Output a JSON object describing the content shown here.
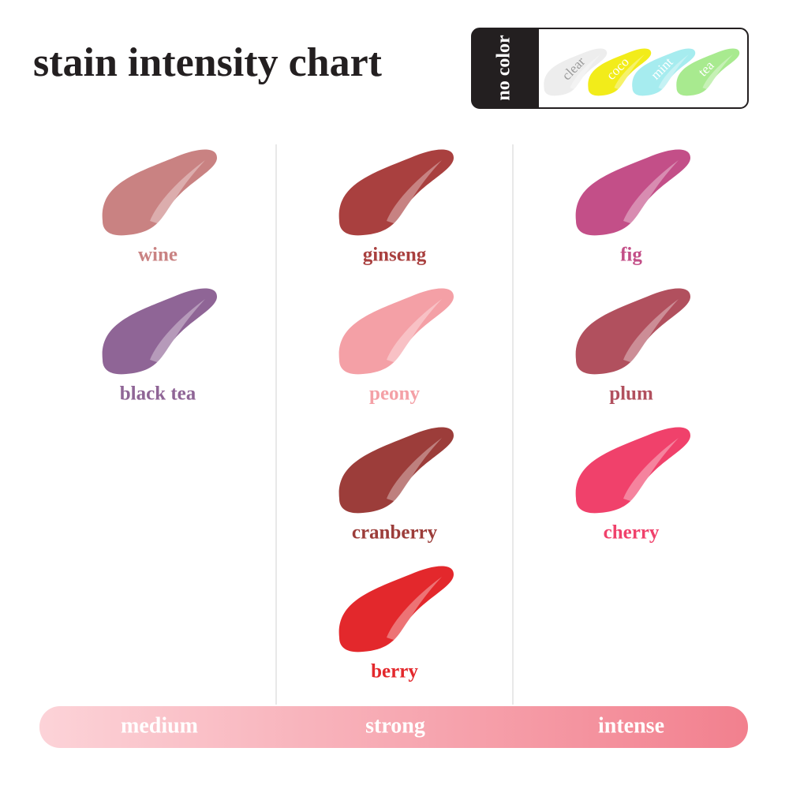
{
  "header": {
    "title": "stain intensity chart"
  },
  "no_color": {
    "label": "no color",
    "swatches": [
      {
        "name": "clear",
        "color": "#ededed",
        "text_color": "#9a9a9a"
      },
      {
        "name": "coco",
        "color": "#f2ec1a",
        "text_color": "#ffffff"
      },
      {
        "name": "mint",
        "color": "#a6ecef",
        "text_color": "#ffffff"
      },
      {
        "name": "tea",
        "color": "#a8ea8f",
        "text_color": "#ffffff"
      }
    ]
  },
  "columns": [
    {
      "items": [
        {
          "name": "wine",
          "color": "#c98282"
        },
        {
          "name": "black tea",
          "color": "#8f6596"
        }
      ]
    },
    {
      "items": [
        {
          "name": "ginseng",
          "color": "#a9403f"
        },
        {
          "name": "peony",
          "color": "#f4a0a6"
        },
        {
          "name": "cranberry",
          "color": "#9c3d3a"
        },
        {
          "name": "berry",
          "color": "#e3282c"
        }
      ]
    },
    {
      "items": [
        {
          "name": "fig",
          "color": "#c34f88"
        },
        {
          "name": "plum",
          "color": "#b1505e"
        },
        {
          "name": "cherry",
          "color": "#f0416b"
        }
      ]
    }
  ],
  "intensity": {
    "labels": [
      "medium",
      "strong",
      "intense"
    ]
  }
}
